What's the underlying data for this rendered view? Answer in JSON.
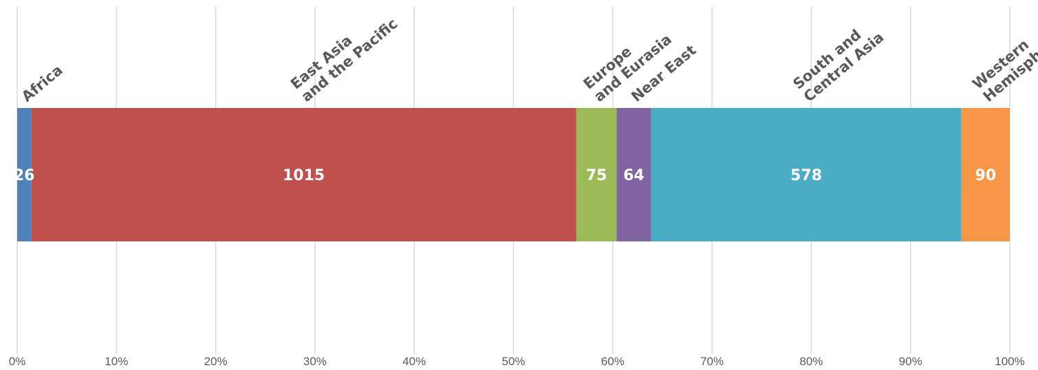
{
  "chart_data": {
    "type": "bar",
    "orientation": "horizontal",
    "stacked": "percent",
    "categories": [
      {
        "name": [
          "Africa"
        ],
        "value": 26,
        "color": "#4f81bd"
      },
      {
        "name": [
          "East Asia",
          "and the Pacific"
        ],
        "value": 1015,
        "color": "#c0504d"
      },
      {
        "name": [
          "Europe",
          "and Eurasia"
        ],
        "value": 75,
        "color": "#9bbb59"
      },
      {
        "name": [
          "Near  East"
        ],
        "value": 64,
        "color": "#8064a2"
      },
      {
        "name": [
          "South and",
          "Central Asia"
        ],
        "value": 578,
        "color": "#4bacc6"
      },
      {
        "name": [
          "Western",
          "Hemisphere"
        ],
        "value": 90,
        "color": "#f79646"
      }
    ],
    "xaxis": {
      "ticks": [
        "0%",
        "10%",
        "20%",
        "30%",
        "40%",
        "50%",
        "60%",
        "70%",
        "80%",
        "90%",
        "100%"
      ],
      "range": [
        0,
        100
      ]
    },
    "grid": true,
    "title": "",
    "xlabel": "",
    "ylabel": ""
  }
}
